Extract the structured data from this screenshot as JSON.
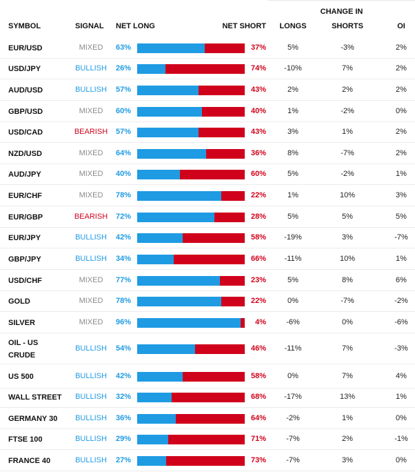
{
  "headers": {
    "symbol": "SYMBOL",
    "signal": "SIGNAL",
    "net_long": "NET LONG",
    "net_short": "NET SHORT",
    "change_in": "CHANGE IN",
    "longs": "LONGS",
    "shorts": "SHORTS",
    "oi": "OI"
  },
  "colors": {
    "long_bar": "#1f9be3",
    "short_bar": "#d0021b",
    "mixed": "#8a8a8a",
    "bullish": "#1f9be3",
    "bearish": "#d0021b"
  },
  "rows": [
    {
      "symbol": "EUR/USD",
      "signal": "MIXED",
      "signal_type": "mixed",
      "net_long": "63%",
      "long_pct": 63,
      "net_short": "37%",
      "longs": "5%",
      "shorts": "-3%",
      "oi": "2%"
    },
    {
      "symbol": "USD/JPY",
      "signal": "BULLISH",
      "signal_type": "bullish",
      "net_long": "26%",
      "long_pct": 26,
      "net_short": "74%",
      "longs": "-10%",
      "shorts": "7%",
      "oi": "2%"
    },
    {
      "symbol": "AUD/USD",
      "signal": "BULLISH",
      "signal_type": "bullish",
      "net_long": "57%",
      "long_pct": 57,
      "net_short": "43%",
      "longs": "2%",
      "shorts": "2%",
      "oi": "2%"
    },
    {
      "symbol": "GBP/USD",
      "signal": "MIXED",
      "signal_type": "mixed",
      "net_long": "60%",
      "long_pct": 60,
      "net_short": "40%",
      "longs": "1%",
      "shorts": "-2%",
      "oi": "0%"
    },
    {
      "symbol": "USD/CAD",
      "signal": "BEARISH",
      "signal_type": "bearish",
      "net_long": "57%",
      "long_pct": 57,
      "net_short": "43%",
      "longs": "3%",
      "shorts": "1%",
      "oi": "2%"
    },
    {
      "symbol": "NZD/USD",
      "signal": "MIXED",
      "signal_type": "mixed",
      "net_long": "64%",
      "long_pct": 64,
      "net_short": "36%",
      "longs": "8%",
      "shorts": "-7%",
      "oi": "2%"
    },
    {
      "symbol": "AUD/JPY",
      "signal": "MIXED",
      "signal_type": "mixed",
      "net_long": "40%",
      "long_pct": 40,
      "net_short": "60%",
      "longs": "5%",
      "shorts": "-2%",
      "oi": "1%"
    },
    {
      "symbol": "EUR/CHF",
      "signal": "MIXED",
      "signal_type": "mixed",
      "net_long": "78%",
      "long_pct": 78,
      "net_short": "22%",
      "longs": "1%",
      "shorts": "10%",
      "oi": "3%"
    },
    {
      "symbol": "EUR/GBP",
      "signal": "BEARISH",
      "signal_type": "bearish",
      "net_long": "72%",
      "long_pct": 72,
      "net_short": "28%",
      "longs": "5%",
      "shorts": "5%",
      "oi": "5%"
    },
    {
      "symbol": "EUR/JPY",
      "signal": "BULLISH",
      "signal_type": "bullish",
      "net_long": "42%",
      "long_pct": 42,
      "net_short": "58%",
      "longs": "-19%",
      "shorts": "3%",
      "oi": "-7%"
    },
    {
      "symbol": "GBP/JPY",
      "signal": "BULLISH",
      "signal_type": "bullish",
      "net_long": "34%",
      "long_pct": 34,
      "net_short": "66%",
      "longs": "-11%",
      "shorts": "10%",
      "oi": "1%"
    },
    {
      "symbol": "USD/CHF",
      "signal": "MIXED",
      "signal_type": "mixed",
      "net_long": "77%",
      "long_pct": 77,
      "net_short": "23%",
      "longs": "5%",
      "shorts": "8%",
      "oi": "6%"
    },
    {
      "symbol": "GOLD",
      "signal": "MIXED",
      "signal_type": "mixed",
      "net_long": "78%",
      "long_pct": 78,
      "net_short": "22%",
      "longs": "0%",
      "shorts": "-7%",
      "oi": "-2%"
    },
    {
      "symbol": "SILVER",
      "signal": "MIXED",
      "signal_type": "mixed",
      "net_long": "96%",
      "long_pct": 96,
      "net_short": "4%",
      "longs": "-6%",
      "shorts": "0%",
      "oi": "-6%"
    },
    {
      "symbol": "OIL - US CRUDE",
      "symbol_lines": [
        "OIL - US",
        "CRUDE"
      ],
      "signal": "BULLISH",
      "signal_type": "bullish",
      "net_long": "54%",
      "long_pct": 54,
      "net_short": "46%",
      "longs": "-11%",
      "shorts": "7%",
      "oi": "-3%"
    },
    {
      "symbol": "US 500",
      "signal": "BULLISH",
      "signal_type": "bullish",
      "net_long": "42%",
      "long_pct": 42,
      "net_short": "58%",
      "longs": "0%",
      "shorts": "7%",
      "oi": "4%"
    },
    {
      "symbol": "WALL STREET",
      "signal": "BULLISH",
      "signal_type": "bullish",
      "net_long": "32%",
      "long_pct": 32,
      "net_short": "68%",
      "longs": "-17%",
      "shorts": "13%",
      "oi": "1%"
    },
    {
      "symbol": "GERMANY 30",
      "signal": "BULLISH",
      "signal_type": "bullish",
      "net_long": "36%",
      "long_pct": 36,
      "net_short": "64%",
      "longs": "-2%",
      "shorts": "1%",
      "oi": "0%"
    },
    {
      "symbol": "FTSE 100",
      "signal": "BULLISH",
      "signal_type": "bullish",
      "net_long": "29%",
      "long_pct": 29,
      "net_short": "71%",
      "longs": "-7%",
      "shorts": "2%",
      "oi": "-1%"
    },
    {
      "symbol": "FRANCE 40",
      "signal": "BULLISH",
      "signal_type": "bullish",
      "net_long": "27%",
      "long_pct": 27,
      "net_short": "73%",
      "longs": "-7%",
      "shorts": "3%",
      "oi": "0%"
    }
  ]
}
